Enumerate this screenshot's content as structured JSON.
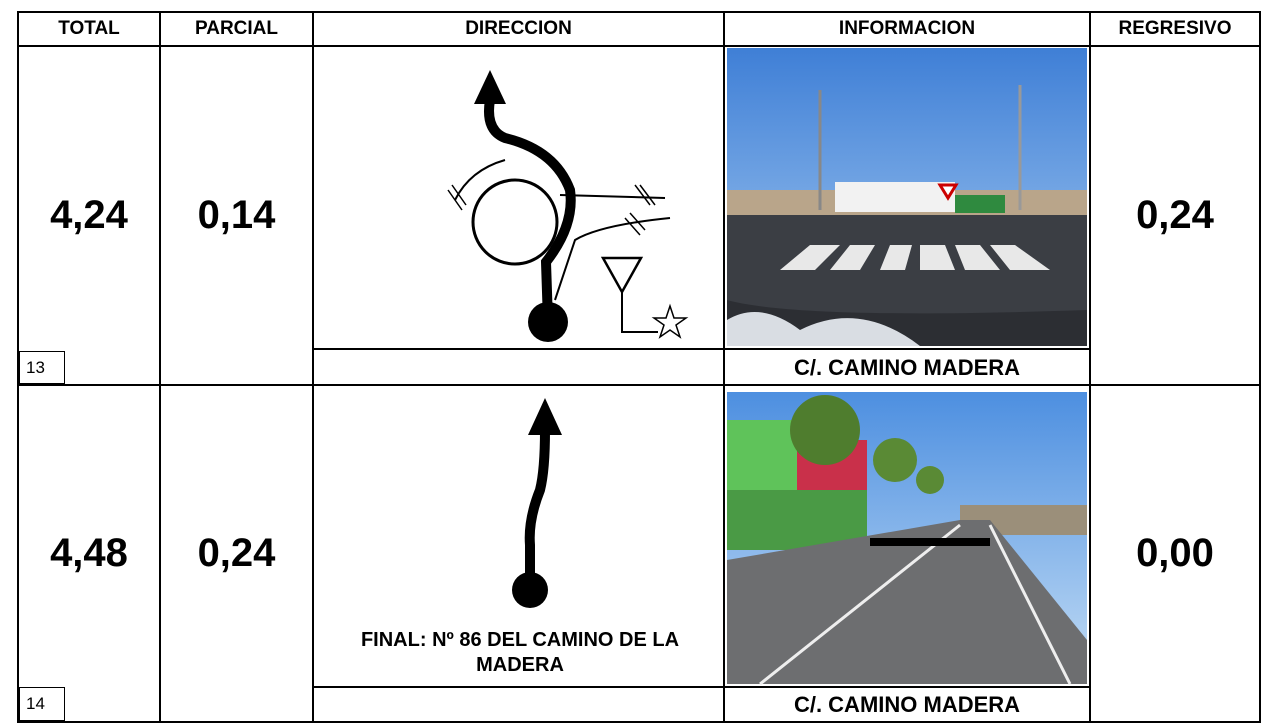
{
  "header": [
    "TOTAL",
    "PARCIAL",
    "DIRECCION",
    "INFORMACION",
    "REGRESIVO"
  ],
  "rows": [
    {
      "total": "4,24",
      "parcial": "0,14",
      "regresivo": "0,24",
      "number": "13",
      "street": "C/. CAMINO MADERA"
    },
    {
      "total": "4,48",
      "parcial": "0,24",
      "regresivo": "0,00",
      "number": "14",
      "note": "FINAL: Nº 86 DEL CAMINO DE LA MADERA",
      "street": "C/. CAMINO MADERA"
    }
  ]
}
